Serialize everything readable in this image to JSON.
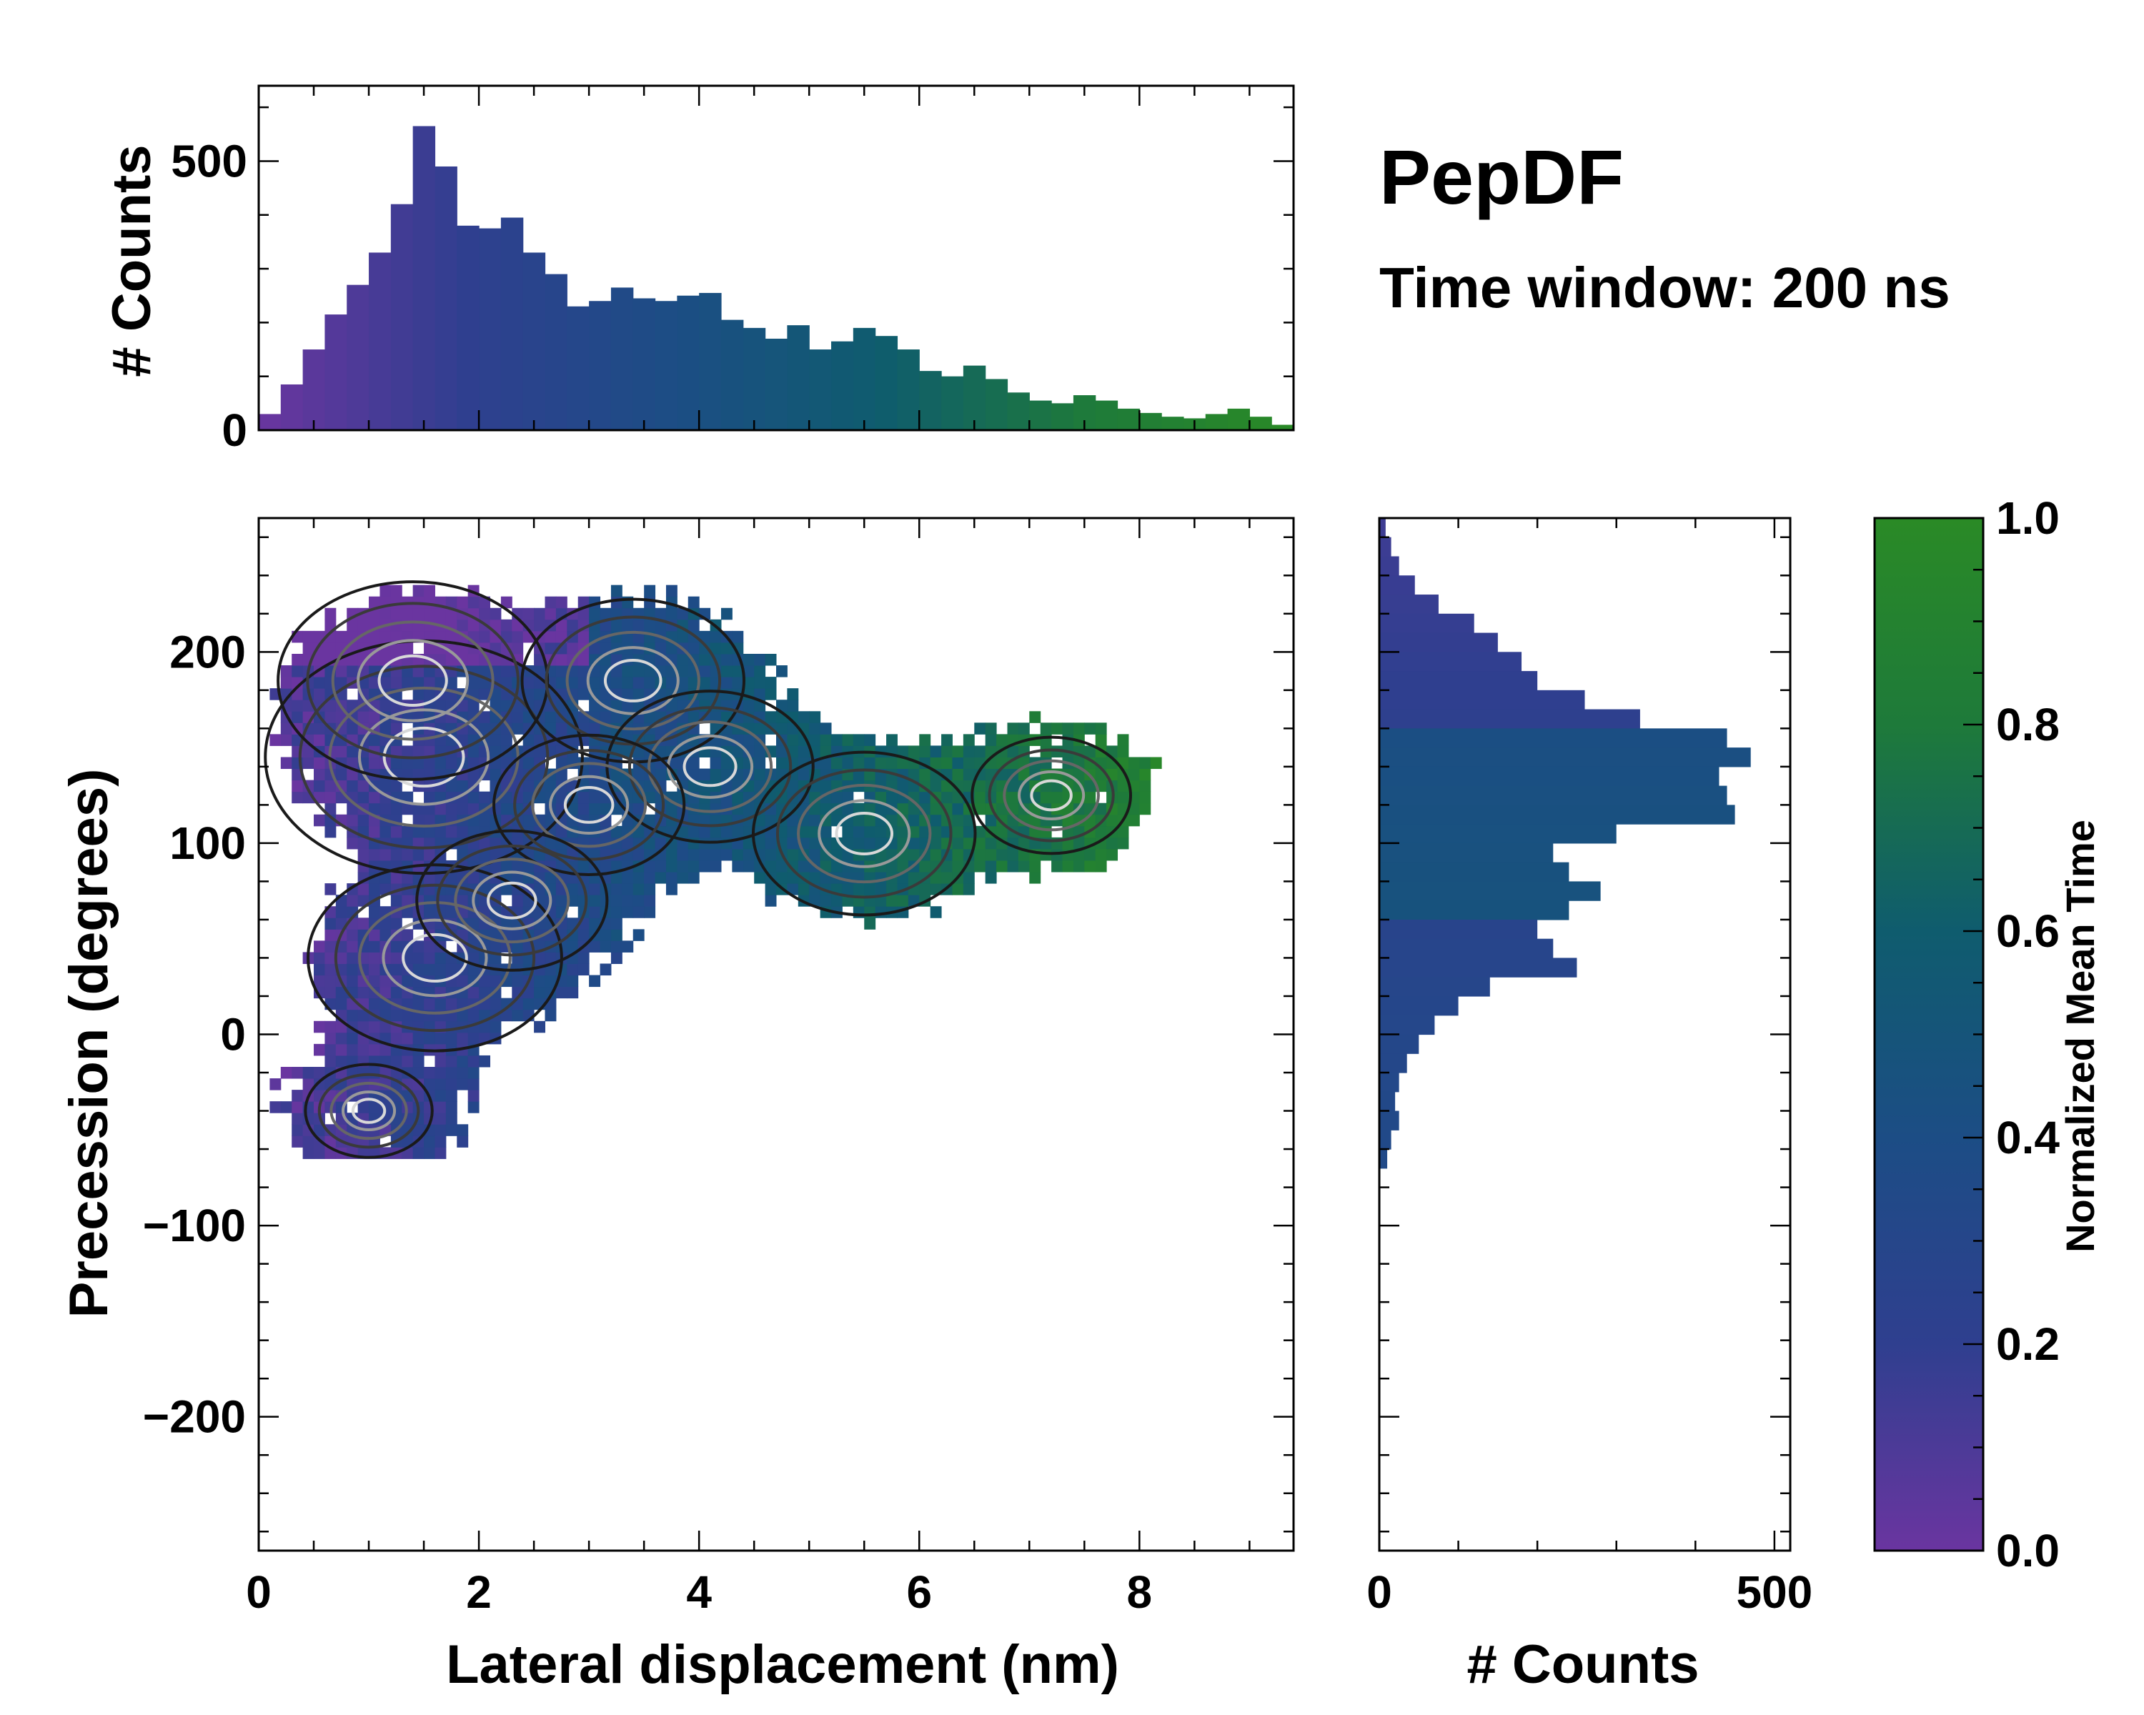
{
  "title": "PepDF",
  "subtitle": "Time window: 200 ns",
  "chart_data": [
    {
      "type": "heatmap",
      "name": "2d-distribution",
      "xlabel": "Lateral displacement (nm)",
      "ylabel": "Precession (degrees)",
      "xlim": [
        0,
        9.4
      ],
      "ylim": [
        -270,
        270
      ],
      "x_ticks": [
        0,
        2,
        4,
        6,
        8
      ],
      "x_tick_labels": [
        "0",
        "2",
        "4",
        "6",
        "8"
      ],
      "y_ticks": [
        -200,
        -100,
        0,
        100,
        200
      ],
      "y_tick_labels": [
        "−200",
        "−100",
        "0",
        "100",
        "200"
      ],
      "color_encoding": "Normalized Mean Time",
      "contours": true,
      "density_peaks": [
        {
          "x": 1.5,
          "y": 145,
          "density": 1.0
        },
        {
          "x": 1.4,
          "y": 185,
          "density": 0.85
        },
        {
          "x": 3.4,
          "y": 185,
          "density": 0.7
        },
        {
          "x": 4.1,
          "y": 140,
          "density": 0.65
        },
        {
          "x": 3.0,
          "y": 120,
          "density": 0.6
        },
        {
          "x": 5.5,
          "y": 105,
          "density": 0.7
        },
        {
          "x": 1.6,
          "y": 40,
          "density": 0.8
        },
        {
          "x": 2.3,
          "y": 70,
          "density": 0.6
        },
        {
          "x": 7.2,
          "y": 125,
          "density": 0.5
        },
        {
          "x": 1.0,
          "y": -40,
          "density": 0.4
        }
      ]
    },
    {
      "type": "bar",
      "name": "top-histogram",
      "ylabel": "# Counts",
      "xlim": [
        0,
        9.4
      ],
      "ylim": [
        0,
        640
      ],
      "y_ticks": [
        0,
        500
      ],
      "y_tick_labels": [
        "0",
        "500"
      ],
      "bin_width": 0.2,
      "x": [
        0.1,
        0.3,
        0.5,
        0.7,
        0.9,
        1.1,
        1.3,
        1.5,
        1.7,
        1.9,
        2.1,
        2.3,
        2.5,
        2.7,
        2.9,
        3.1,
        3.3,
        3.5,
        3.7,
        3.9,
        4.1,
        4.3,
        4.5,
        4.7,
        4.9,
        5.1,
        5.3,
        5.5,
        5.7,
        5.9,
        6.1,
        6.3,
        6.5,
        6.7,
        6.9,
        7.1,
        7.3,
        7.5,
        7.7,
        7.9,
        8.1,
        8.3,
        8.5,
        8.7,
        8.9,
        9.1,
        9.3
      ],
      "values": [
        30,
        85,
        150,
        215,
        270,
        330,
        420,
        565,
        490,
        380,
        375,
        395,
        330,
        290,
        230,
        240,
        265,
        245,
        240,
        250,
        255,
        205,
        190,
        170,
        195,
        150,
        165,
        190,
        175,
        150,
        110,
        100,
        120,
        95,
        70,
        55,
        50,
        65,
        55,
        40,
        32,
        25,
        22,
        30,
        40,
        25,
        10
      ]
    },
    {
      "type": "bar",
      "name": "right-histogram",
      "orientation": "horizontal",
      "xlabel": "# Counts",
      "xlim": [
        0,
        520
      ],
      "x_ticks": [
        0,
        500
      ],
      "x_tick_labels": [
        "0",
        "500"
      ],
      "bin_width": 10,
      "y": [
        265,
        255,
        245,
        235,
        225,
        215,
        205,
        195,
        185,
        175,
        165,
        155,
        145,
        135,
        125,
        115,
        105,
        95,
        85,
        75,
        65,
        55,
        45,
        35,
        25,
        15,
        5,
        -5,
        -15,
        -25,
        -35,
        -45,
        -55,
        -65
      ],
      "values": [
        8,
        15,
        25,
        45,
        75,
        120,
        150,
        180,
        200,
        260,
        330,
        440,
        470,
        430,
        440,
        450,
        300,
        220,
        240,
        280,
        240,
        200,
        220,
        250,
        140,
        100,
        70,
        50,
        35,
        25,
        20,
        25,
        15,
        10
      ]
    },
    {
      "type": "colorbar",
      "name": "colorbar",
      "label": "Normalized Mean Time",
      "range": [
        0.0,
        1.0
      ],
      "ticks": [
        0.0,
        0.2,
        0.4,
        0.6,
        0.8,
        1.0
      ],
      "tick_labels": [
        "0.0",
        "0.2",
        "0.4",
        "0.6",
        "0.8",
        "1.0"
      ],
      "colors": [
        "#6a35a0",
        "#2f3f8f",
        "#1c4d85",
        "#0f5c6e",
        "#1e7a3a",
        "#2a8a26"
      ]
    }
  ]
}
